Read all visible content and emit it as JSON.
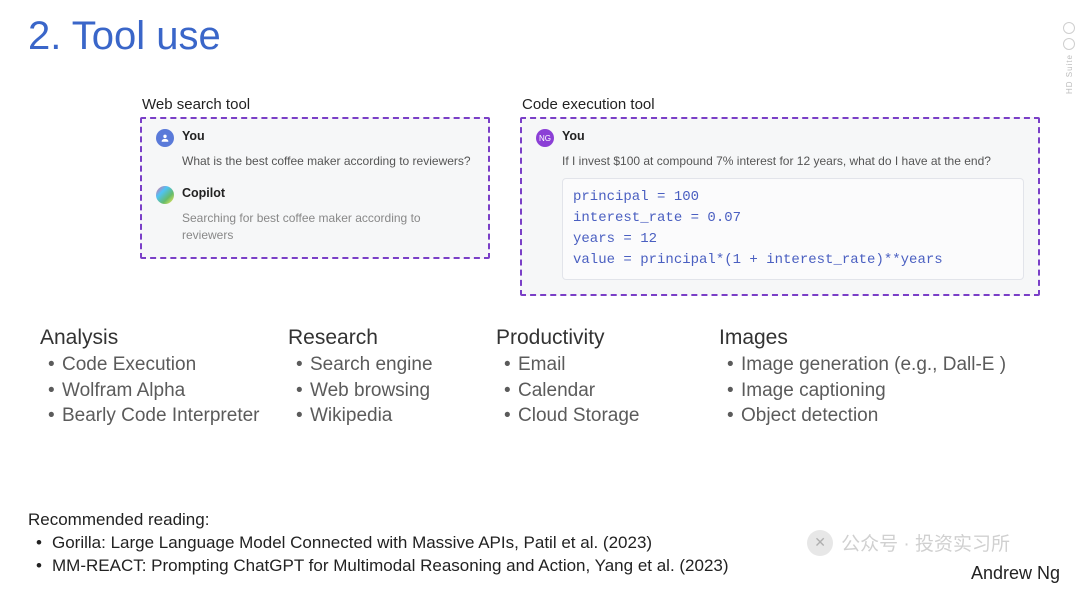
{
  "title": "2. Tool use",
  "title_color": "#3a66c9",
  "panels": {
    "web_search": {
      "label": "Web search tool",
      "border_color": "#7a3fc7",
      "background": "#f6f7f8",
      "you_label": "You",
      "you_avatar_color": "#5a7ad9",
      "question": "What is the best coffee maker according to reviewers?",
      "agent_label": "Copilot",
      "agent_status": "Searching for best coffee maker according to reviewers"
    },
    "code_exec": {
      "label": "Code execution tool",
      "border_color": "#7a3fc7",
      "background": "#f6f7f8",
      "you_label": "You",
      "you_avatar_text": "NG",
      "you_avatar_color": "#8b3fd6",
      "question": "If I invest $100 at compound 7% interest for 12 years, what do I have at the end?",
      "code_lines": [
        "principal = 100",
        "interest_rate = 0.07",
        "years = 12",
        "value = principal*(1 + interest_rate)**years"
      ],
      "code_color": "#4a5fc1",
      "code_font": "Courier New"
    }
  },
  "categories": [
    {
      "title": "Analysis",
      "items": [
        "Code Execution",
        "Wolfram Alpha",
        "Bearly Code Interpreter"
      ]
    },
    {
      "title": "Research",
      "items": [
        "Search engine",
        "Web browsing",
        "Wikipedia"
      ]
    },
    {
      "title": "Productivity",
      "items": [
        "Email",
        "Calendar",
        "Cloud Storage"
      ]
    },
    {
      "title": "Images",
      "items": [
        "Image generation (e.g., Dall-E )",
        "Image captioning",
        "Object detection"
      ]
    }
  ],
  "reading": {
    "heading": "Recommended reading:",
    "items": [
      "Gorilla: Large Language Model Connected with Massive APIs, Patil et al. (2023)",
      "MM-REACT: Prompting ChatGPT for Multimodal Reasoning and Action, Yang et al. (2023)"
    ]
  },
  "author": "Andrew Ng",
  "watermark": {
    "prefix_icon": "✕",
    "text": "公众号 · 投资实习所"
  },
  "side_label": "HD Suite"
}
